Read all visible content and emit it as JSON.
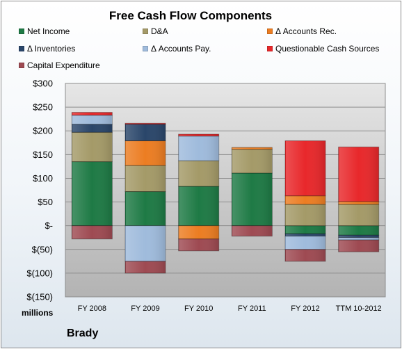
{
  "chart_data": {
    "type": "bar",
    "stacked": true,
    "title": "Free Cash Flow Components",
    "units_label": "millions",
    "company": "Brady",
    "categories": [
      "FY 2008",
      "FY 2009",
      "FY 2010",
      "FY 2011",
      "FY 2012",
      "TTM 10-2012"
    ],
    "y_tick_labels": [
      "$(150)",
      "$(100)",
      "$(50)",
      "$-",
      "$50",
      "$100",
      "$150",
      "$200",
      "$250",
      "$300"
    ],
    "y_tick_values": [
      -150,
      -100,
      -50,
      0,
      50,
      100,
      150,
      200,
      250,
      300
    ],
    "ylim": [
      -150,
      300
    ],
    "grid": true,
    "legend_position": "top",
    "series": [
      {
        "name": "Net Income",
        "color": "#1e7a45",
        "values": [
          135,
          72,
          83,
          111,
          -17,
          -20
        ]
      },
      {
        "name": "D&A",
        "color": "#a49a68",
        "values": [
          62,
          55,
          54,
          50,
          45,
          45
        ]
      },
      {
        "name": "Δ Accounts Rec.",
        "color": "#ec7d22",
        "values": [
          0,
          52,
          -28,
          4,
          18,
          6
        ]
      },
      {
        "name": "Δ Inventories",
        "color": "#2a466a",
        "values": [
          17,
          35,
          0,
          0,
          -5,
          -5
        ]
      },
      {
        "name": "Δ Accounts Pay.",
        "color": "#9fbbdc",
        "values": [
          19,
          -75,
          52,
          0,
          -28,
          -5
        ]
      },
      {
        "name": "Questionable Cash Sources",
        "color": "#e8282b",
        "values": [
          6,
          2,
          4,
          0,
          116,
          115
        ]
      },
      {
        "name": "Capital Expenditure",
        "color": "#9e4a52",
        "values": [
          -28,
          -25,
          -25,
          -22,
          -25,
          -25
        ]
      }
    ]
  }
}
